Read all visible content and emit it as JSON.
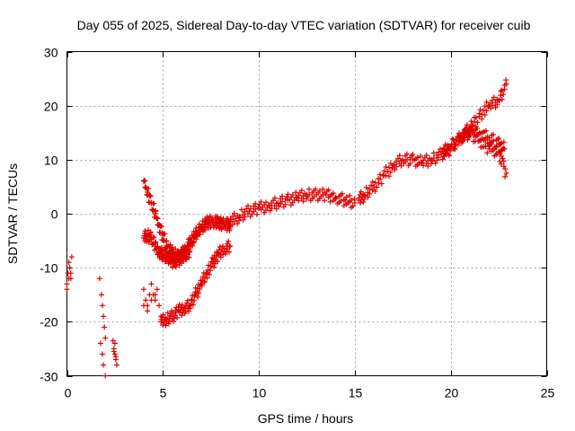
{
  "chart_data": {
    "type": "scatter",
    "title": "Day 055 of 2025, Sidereal Day-to-day VTEC variation (SDTVAR) for receiver cuib",
    "xlabel": "GPS time / hours",
    "ylabel": "SDTVAR / TECUs",
    "xlim": [
      0,
      25
    ],
    "ylim": [
      -30,
      30
    ],
    "xticks": [
      0,
      5,
      10,
      15,
      20,
      25
    ],
    "yticks": [
      -30,
      -20,
      -10,
      0,
      10,
      20,
      30
    ],
    "xtick_labels": [
      "0",
      "5",
      "10",
      "15",
      "20",
      "25"
    ],
    "ytick_labels": [
      "-30",
      "-20",
      "-10",
      "0",
      "10",
      "20",
      "30"
    ],
    "grid": true,
    "marker": "+",
    "color": "#e00000",
    "series": [
      {
        "name": "scatter-0",
        "x": [
          0.0,
          0.05,
          0.1,
          0.15,
          0.2,
          0.25,
          0.0,
          0.1,
          0.2
        ],
        "y": [
          -13,
          -11,
          -9,
          -10,
          -12,
          -8,
          -14,
          -12,
          -11
        ]
      },
      {
        "name": "scatter-1",
        "x": [
          1.7,
          1.8,
          1.85,
          1.9,
          1.95,
          2.0,
          1.75,
          1.85,
          1.9,
          2.0
        ],
        "y": [
          -12,
          -15,
          -17,
          -19,
          -21,
          -23,
          -24,
          -26,
          -28,
          -30
        ]
      },
      {
        "name": "scatter-2",
        "x": [
          2.4,
          2.45,
          2.5,
          2.55,
          2.6,
          2.5,
          2.45,
          2.55
        ],
        "y": [
          -23.5,
          -25,
          -26,
          -27,
          -28,
          -24,
          -25.5,
          -26.5
        ]
      },
      {
        "name": "scatter-3",
        "x": [
          4.0,
          4.1,
          4.2,
          4.3,
          4.4,
          4.5,
          4.6,
          4.7,
          4.8,
          4.9,
          4.0,
          4.2,
          4.4,
          4.6
        ],
        "y": [
          -14,
          -16,
          -17,
          -15,
          -13,
          -15,
          -16,
          -14,
          -17,
          -19,
          -17,
          -18,
          -16,
          -15
        ]
      },
      {
        "name": "cluster-early-up",
        "x": [
          4.0,
          4.2,
          4.4,
          4.6,
          4.8,
          5.0,
          5.2,
          5.4,
          5.6,
          5.8,
          6.0,
          6.2,
          6.4,
          6.6,
          6.8,
          7.0,
          7.2,
          7.4,
          7.6,
          7.8,
          8.0,
          8.2,
          8.4,
          8.5
        ],
        "y": [
          6,
          4,
          2,
          0,
          -2,
          -4,
          -6,
          -7,
          -7.5,
          -8,
          -7.5,
          -6.5,
          -5.5,
          -4.5,
          -3.5,
          -2.5,
          -2,
          -1.5,
          -1.5,
          -1.5,
          -1.8,
          -2,
          -2,
          -2.2
        ]
      },
      {
        "name": "cluster-early-low",
        "x": [
          4.0,
          4.2,
          4.4,
          4.6,
          4.8,
          5.0,
          5.2,
          5.4,
          5.6,
          5.8,
          6.0,
          6.2,
          6.4
        ],
        "y": [
          -4.5,
          -4,
          -4.5,
          -6,
          -7,
          -7.5,
          -8,
          -8.5,
          -9,
          -8.5,
          -8,
          -7.5,
          -7
        ]
      },
      {
        "name": "cluster-rise",
        "x": [
          4.9,
          5.2,
          5.5,
          5.8,
          6.1,
          6.4,
          6.7,
          7.0,
          7.3,
          7.6,
          7.9,
          8.2,
          8.5
        ],
        "y": [
          -20,
          -19.5,
          -19,
          -18,
          -17.5,
          -17,
          -15,
          -13,
          -11,
          -9,
          -7.5,
          -6.5,
          -6
        ]
      },
      {
        "name": "cluster-main",
        "x": [
          8.5,
          9.0,
          9.5,
          10.0,
          10.5,
          11.0,
          11.5,
          12.0,
          12.5,
          13.0,
          13.5,
          14.0,
          14.5,
          15.0
        ],
        "y": [
          -1.5,
          -0.5,
          0.5,
          1,
          1.5,
          2,
          2.5,
          3,
          3.5,
          3.5,
          3.5,
          3,
          2.5,
          2
        ]
      },
      {
        "name": "cluster-mid",
        "x": [
          15.2,
          15.5,
          16.0,
          16.5,
          17.0,
          17.5,
          18.0,
          18.5,
          19.0,
          19.5,
          20.0,
          20.5,
          21.0,
          21.5,
          22.0,
          22.5,
          22.9
        ],
        "y": [
          2.5,
          3.5,
          5,
          7,
          9,
          10,
          10,
          9.5,
          10,
          11,
          12,
          14,
          16,
          18,
          20,
          21,
          24
        ]
      },
      {
        "name": "cluster-late",
        "x": [
          19.5,
          20.0,
          20.5,
          21.0,
          21.5,
          22.0,
          22.5,
          22.8
        ],
        "y": [
          11,
          12.5,
          14,
          15.5,
          15,
          14,
          13,
          12
        ]
      },
      {
        "name": "cluster-late-low",
        "x": [
          20.5,
          21.0,
          21.5,
          22.0,
          22.5,
          22.9
        ],
        "y": [
          14,
          15,
          13.5,
          12,
          11.5,
          7.5
        ]
      }
    ]
  }
}
